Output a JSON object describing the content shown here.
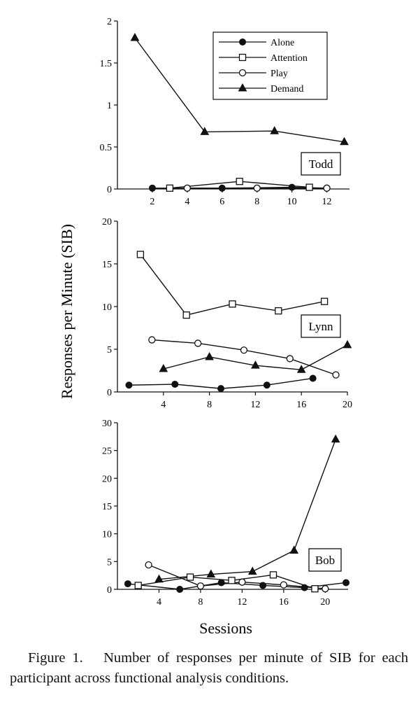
{
  "chart_data": [
    {
      "type": "line",
      "panel_label": "Todd",
      "xlim": [
        0,
        13.3
      ],
      "ylim": [
        0,
        2
      ],
      "xticks": [
        2,
        4,
        6,
        8,
        10,
        12
      ],
      "yticks": [
        0,
        0.5,
        1,
        1.5,
        2
      ],
      "ytick_labels": [
        "0",
        "0.5",
        "1",
        "1.5",
        "2"
      ],
      "legend": {
        "placement": "top-right",
        "entries": [
          "Alone",
          "Attention",
          "Play",
          "Demand"
        ]
      },
      "series": [
        {
          "name": "Alone",
          "marker": "filled-circle",
          "x": [
            2,
            6,
            10,
            12
          ],
          "y": [
            0.01,
            0.01,
            0.02,
            0.01
          ]
        },
        {
          "name": "Attention",
          "marker": "open-square",
          "x": [
            3,
            7,
            11
          ],
          "y": [
            0.01,
            0.09,
            0.02
          ]
        },
        {
          "name": "Play",
          "marker": "open-circle",
          "x": [
            4,
            8,
            12
          ],
          "y": [
            0.01,
            0.01,
            0.01
          ]
        },
        {
          "name": "Demand",
          "marker": "filled-triangle",
          "x": [
            1,
            5,
            9,
            13
          ],
          "y": [
            1.8,
            0.68,
            0.69,
            0.56
          ]
        }
      ]
    },
    {
      "type": "line",
      "panel_label": "Lynn",
      "xlim": [
        0,
        20
      ],
      "ylim": [
        0,
        20
      ],
      "xticks": [
        4,
        8,
        12,
        16,
        20
      ],
      "yticks": [
        0,
        5,
        10,
        15,
        20
      ],
      "ytick_labels": [
        "0",
        "5",
        "10",
        "15",
        "20"
      ],
      "series": [
        {
          "name": "Alone",
          "marker": "filled-circle",
          "x": [
            1,
            5,
            9,
            13,
            17
          ],
          "y": [
            0.8,
            0.9,
            0.4,
            0.8,
            1.6
          ]
        },
        {
          "name": "Attention",
          "marker": "open-square",
          "x": [
            2,
            6,
            10,
            14,
            18
          ],
          "y": [
            16.1,
            9.0,
            10.3,
            9.5,
            10.6
          ]
        },
        {
          "name": "Play",
          "marker": "open-circle",
          "x": [
            3,
            7,
            11,
            15,
            19
          ],
          "y": [
            6.1,
            5.7,
            4.9,
            3.9,
            2.0
          ]
        },
        {
          "name": "Demand",
          "marker": "filled-triangle",
          "x": [
            4,
            8,
            12,
            16,
            20
          ],
          "y": [
            2.7,
            4.1,
            3.1,
            2.6,
            5.5
          ]
        }
      ]
    },
    {
      "type": "line",
      "panel_label": "Bob",
      "xlim": [
        0,
        22.2
      ],
      "ylim": [
        0,
        30
      ],
      "xticks": [
        4,
        8,
        12,
        16,
        20
      ],
      "yticks": [
        0,
        5,
        10,
        15,
        20,
        25,
        30
      ],
      "ytick_labels": [
        "0",
        "5",
        "10",
        "15",
        "20",
        "25",
        "30"
      ],
      "series": [
        {
          "name": "Alone",
          "marker": "filled-circle",
          "x": [
            1,
            6,
            10,
            14,
            18,
            22
          ],
          "y": [
            1.0,
            0.0,
            1.2,
            0.7,
            0.3,
            1.2
          ]
        },
        {
          "name": "Attention",
          "marker": "open-square",
          "x": [
            2,
            7,
            11,
            15,
            19
          ],
          "y": [
            0.7,
            2.2,
            1.6,
            2.6,
            0.1
          ]
        },
        {
          "name": "Play",
          "marker": "open-circle",
          "x": [
            3,
            8,
            12,
            16,
            20
          ],
          "y": [
            4.4,
            0.6,
            1.3,
            0.8,
            0.1
          ]
        },
        {
          "name": "Demand",
          "marker": "filled-triangle",
          "x": [
            4,
            9,
            13,
            17,
            21
          ],
          "y": [
            1.8,
            2.7,
            3.2,
            7.0,
            27.0
          ]
        }
      ]
    }
  ],
  "axis_labels": {
    "y": "Responses per Minute (SIB)",
    "x": "Sessions"
  },
  "caption": {
    "label": "Figure 1.",
    "text": "Number of responses per minute of SIB for each participant across functional analysis conditions."
  }
}
